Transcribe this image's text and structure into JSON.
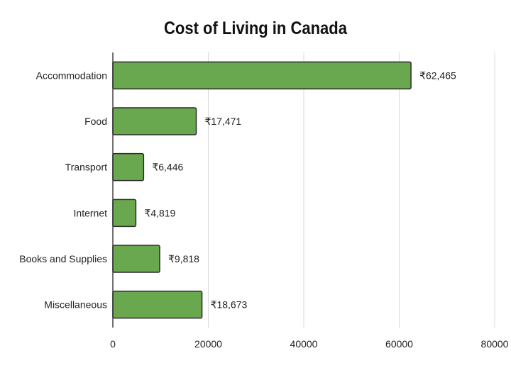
{
  "chart_data": {
    "type": "bar",
    "orientation": "horizontal",
    "title": "Cost of Living in Canada",
    "xlabel": "",
    "ylabel": "",
    "categories": [
      "Accommodation",
      "Food",
      "Transport",
      "Internet",
      "Books and Supplies",
      "Miscellaneous"
    ],
    "values": [
      62465,
      17471,
      6446,
      4819,
      9818,
      18673
    ],
    "value_labels": [
      "₹62,465",
      "₹17,471",
      "₹6,446",
      "₹4,819",
      "₹9,818",
      "₹18,673"
    ],
    "xlim": [
      0,
      80000
    ],
    "xticks": [
      0,
      20000,
      40000,
      60000,
      80000
    ],
    "xtick_labels": [
      "0",
      "20000",
      "40000",
      "60000",
      "80000"
    ],
    "grid": "vertical",
    "legend": "none",
    "bar_color": "#6aa84f",
    "bar_edge_color": "#2b2b2b"
  }
}
